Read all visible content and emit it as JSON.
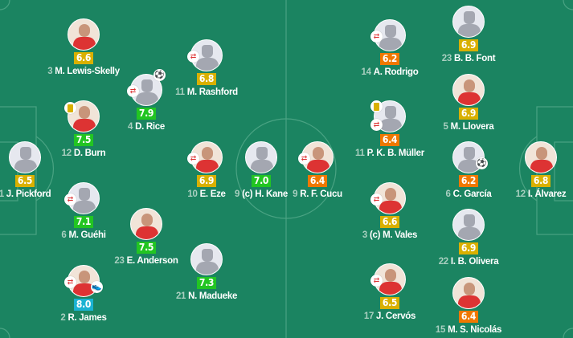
{
  "colors": {
    "pitch": "#1b8461",
    "lines": "#4aa383",
    "rating_yellow": "#d9b000",
    "rating_green": "#22c522",
    "rating_orange": "#f07800",
    "rating_blue": "#1ab3d3"
  },
  "home": [
    {
      "number": "3",
      "name": "M. Lewis-Skelly",
      "rating": "6.6",
      "tier": "yellow",
      "photo": true
    },
    {
      "number": "11",
      "name": "M. Rashford",
      "rating": "6.8",
      "tier": "yellow",
      "sub": true
    },
    {
      "number": "4",
      "name": "D. Rice",
      "rating": "7.9",
      "tier": "green",
      "sub": true,
      "event": "goal-icon"
    },
    {
      "number": "12",
      "name": "D. Burn",
      "rating": "7.5",
      "tier": "green",
      "photo": true,
      "yellow_card": true
    },
    {
      "number": "1",
      "name": "J. Pickford",
      "rating": "6.5",
      "tier": "yellow"
    },
    {
      "number": "10",
      "name": "E. Eze",
      "rating": "6.9",
      "tier": "yellow",
      "photo": true,
      "sub": true
    },
    {
      "number": "9",
      "name": "(c) H. Kane",
      "rating": "7.0",
      "tier": "green"
    },
    {
      "number": "6",
      "name": "M. Guéhi",
      "rating": "7.1",
      "tier": "green",
      "sub": true
    },
    {
      "number": "23",
      "name": "E. Anderson",
      "rating": "7.5",
      "tier": "green",
      "photo": true
    },
    {
      "number": "21",
      "name": "N. Madueke",
      "rating": "7.3",
      "tier": "green"
    },
    {
      "number": "2",
      "name": "R. James",
      "rating": "8.0",
      "tier": "blue",
      "photo": true,
      "sub": true,
      "event": "assist-boot-icon"
    }
  ],
  "away": [
    {
      "number": "23",
      "name": "B. B. Font",
      "rating": "6.9",
      "tier": "yellow"
    },
    {
      "number": "14",
      "name": "A. Rodrigo",
      "rating": "6.2",
      "tier": "orange",
      "sub": true
    },
    {
      "number": "5",
      "name": "M. Llovera",
      "rating": "6.9",
      "tier": "yellow",
      "photo": true
    },
    {
      "number": "11",
      "name": "P. K. B. Müller",
      "rating": "6.4",
      "tier": "orange",
      "sub": true,
      "yellow_card": true
    },
    {
      "number": "9",
      "name": "R. F. Cucu",
      "rating": "6.4",
      "tier": "orange",
      "photo": true,
      "sub": true
    },
    {
      "number": "6",
      "name": "C. García",
      "rating": "6.2",
      "tier": "orange",
      "event": "own-goal-icon"
    },
    {
      "number": "12",
      "name": "I. Álvarez",
      "rating": "6.8",
      "tier": "yellow",
      "photo": true
    },
    {
      "number": "3",
      "name": "(c) M. Vales",
      "rating": "6.6",
      "tier": "yellow",
      "photo": true,
      "sub": true
    },
    {
      "number": "22",
      "name": "I. B. Olivera",
      "rating": "6.9",
      "tier": "yellow"
    },
    {
      "number": "17",
      "name": "J. Cervós",
      "rating": "6.5",
      "tier": "yellow",
      "photo": true,
      "sub": true
    },
    {
      "number": "15",
      "name": "M. S. Nicolás",
      "rating": "6.4",
      "tier": "orange",
      "photo": true
    }
  ]
}
